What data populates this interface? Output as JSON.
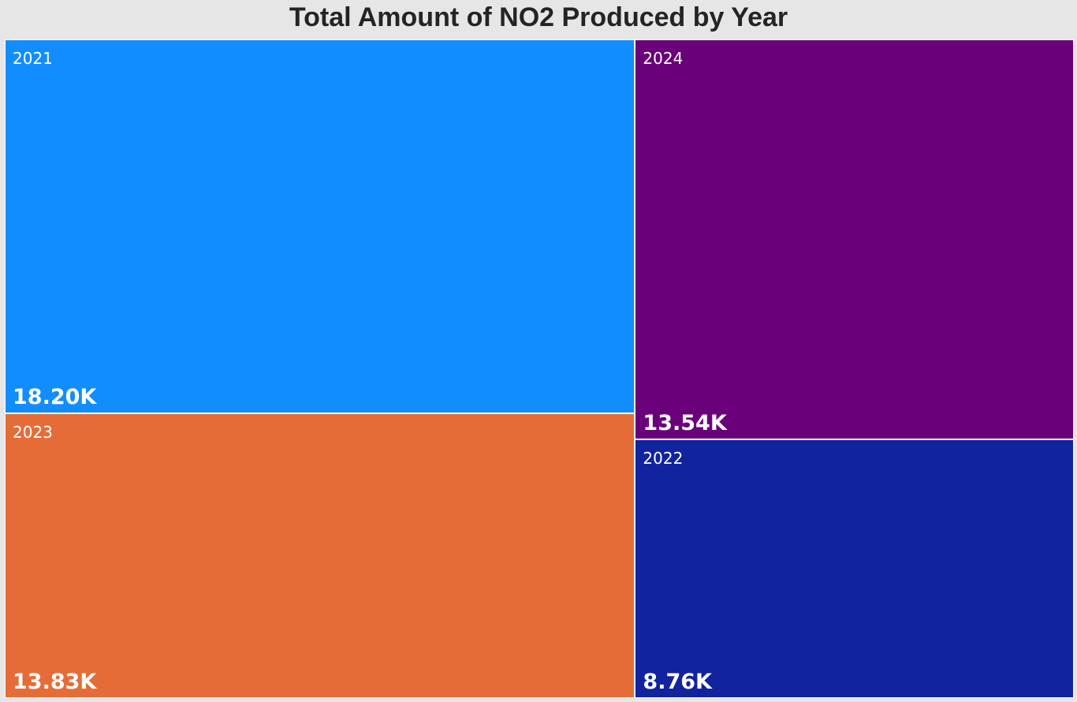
{
  "chart_data": {
    "type": "treemap",
    "title": "Total Amount of NO2 Produced by Year",
    "categories": [
      "2021",
      "2023",
      "2024",
      "2022"
    ],
    "values": [
      18200,
      13830,
      13540,
      8760
    ],
    "value_labels": [
      "18.20K",
      "13.83K",
      "13.54K",
      "8.76K"
    ],
    "colors": [
      "#118dff",
      "#e66c37",
      "#6b007b",
      "#12239e"
    ]
  }
}
